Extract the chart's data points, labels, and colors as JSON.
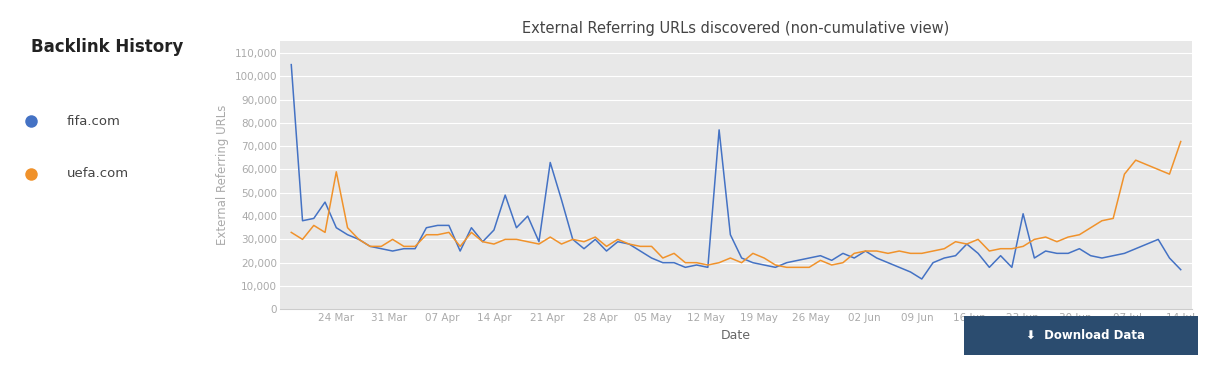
{
  "title": "External Referring URLs discovered (non-cumulative view)",
  "xlabel": "Date",
  "ylabel": "External Referring URLs",
  "main_title": "Backlink History",
  "fifa_color": "#4472c4",
  "uefa_color": "#f0922b",
  "fifa_label": "fifa.com",
  "uefa_label": "uefa.com",
  "x_ticks": [
    "24 Mar",
    "31 Mar",
    "07 Apr",
    "14 Apr",
    "21 Apr",
    "28 Apr",
    "05 May",
    "12 May",
    "19 May",
    "26 May",
    "02 Jun",
    "09 Jun",
    "16 Jun",
    "23 Jun",
    "30 Jun",
    "07 Jul",
    "14 Jul"
  ],
  "ylim": [
    0,
    115000
  ],
  "yticks": [
    0,
    10000,
    20000,
    30000,
    40000,
    50000,
    60000,
    70000,
    80000,
    90000,
    100000,
    110000
  ],
  "plot_bg": "#e8e8e8",
  "fig_bg": "#ffffff",
  "fifa_data": [
    105000,
    38000,
    39000,
    46000,
    35000,
    32000,
    30000,
    27000,
    26000,
    25000,
    26000,
    26000,
    35000,
    36000,
    36000,
    25000,
    35000,
    29000,
    34000,
    49000,
    35000,
    40000,
    29000,
    63000,
    47000,
    30000,
    26000,
    30000,
    25000,
    29000,
    28000,
    25000,
    22000,
    20000,
    20000,
    18000,
    19000,
    18000,
    77000,
    32000,
    22000,
    20000,
    19000,
    18000,
    20000,
    21000,
    22000,
    23000,
    21000,
    24000,
    22000,
    25000,
    22000,
    20000,
    18000,
    16000,
    13000,
    20000,
    22000,
    23000,
    28000,
    24000,
    18000,
    23000,
    18000,
    41000,
    22000,
    25000,
    24000,
    24000,
    26000,
    23000,
    22000,
    23000,
    24000,
    26000,
    28000,
    30000,
    22000,
    17000
  ],
  "uefa_data": [
    33000,
    30000,
    36000,
    33000,
    59000,
    35000,
    30000,
    27000,
    27000,
    30000,
    27000,
    27000,
    32000,
    32000,
    33000,
    27000,
    33000,
    29000,
    28000,
    30000,
    30000,
    29000,
    28000,
    31000,
    28000,
    30000,
    29000,
    31000,
    27000,
    30000,
    28000,
    27000,
    27000,
    22000,
    24000,
    20000,
    20000,
    19000,
    20000,
    22000,
    20000,
    24000,
    22000,
    19000,
    18000,
    18000,
    18000,
    21000,
    19000,
    20000,
    24000,
    25000,
    25000,
    24000,
    25000,
    24000,
    24000,
    25000,
    26000,
    29000,
    28000,
    30000,
    25000,
    26000,
    26000,
    27000,
    30000,
    31000,
    29000,
    31000,
    32000,
    35000,
    38000,
    39000,
    58000,
    64000,
    62000,
    60000,
    58000,
    72000
  ]
}
